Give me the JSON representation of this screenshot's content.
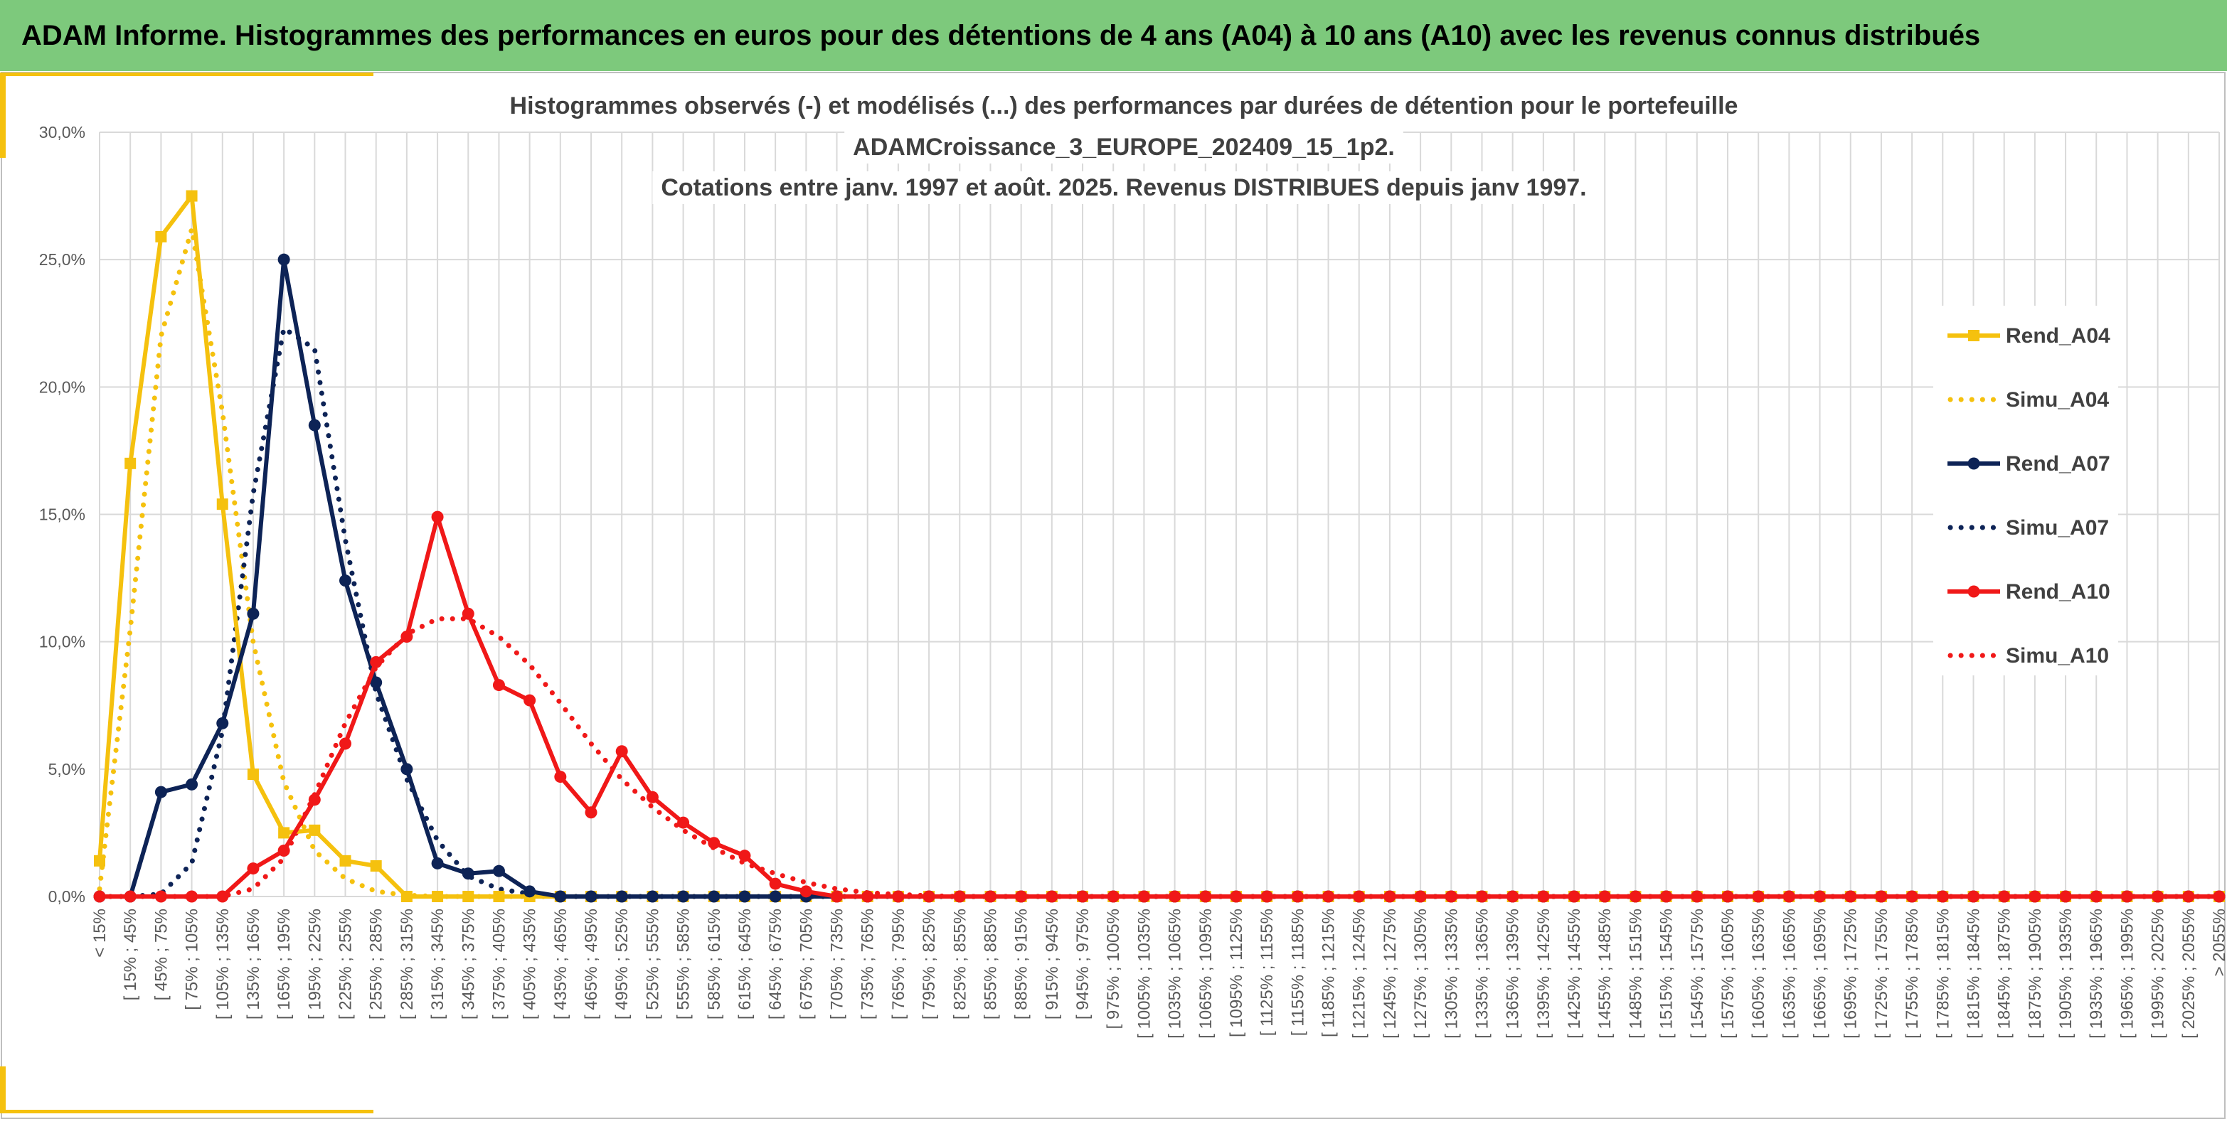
{
  "page": {
    "banner_title": "ADAM Informe. Histogrammes des performances en euros pour des détentions de 4 ans (A04) à 10 ans (A10) avec les revenus connus distribués"
  },
  "colors": {
    "banner": "#7dc97c",
    "A04": "#f5c10e",
    "A07": "#0d2356",
    "A10": "#f01818",
    "grid": "#d9d9d9",
    "accent_bar": "#f5c10e"
  },
  "chart_data": {
    "type": "line",
    "title": [
      "Histogrammes observés (-) et modélisés (...) des performances par durées de détention pour le portefeuille",
      "ADAMCroissance_3_EUROPE_202409_15_1p2.",
      "Cotations entre janv. 1997 et août. 2025. Revenus DISTRIBUES depuis janv 1997."
    ],
    "ylim": [
      0,
      30
    ],
    "y_ticks": [
      "0,0%",
      "5,0%",
      "10,0%",
      "15,0%",
      "20,0%",
      "25,0%",
      "30,0%"
    ],
    "grid": true,
    "legend_position": "right",
    "categories": [
      "< 15%",
      "[ 15% ; 45%",
      "[ 45% ; 75%",
      "[ 75% ; 105%",
      "[ 105% ; 135%",
      "[ 135% ; 165%",
      "[ 165% ; 195%",
      "[ 195% ; 225%",
      "[ 225% ; 255%",
      "[ 255% ; 285%",
      "[ 285% ; 315%",
      "[ 315% ; 345%",
      "[ 345% ; 375%",
      "[ 375% ; 405%",
      "[ 405% ; 435%",
      "[ 435% ; 465%",
      "[ 465% ; 495%",
      "[ 495% ; 525%",
      "[ 525% ; 555%",
      "[ 555% ; 585%",
      "[ 585% ; 615%",
      "[ 615% ; 645%",
      "[ 645% ; 675%",
      "[ 675% ; 705%",
      "[ 705% ; 735%",
      "[ 735% ; 765%",
      "[ 765% ; 795%",
      "[ 795% ; 825%",
      "[ 825% ; 855%",
      "[ 855% ; 885%",
      "[ 885% ; 915%",
      "[ 915% ; 945%",
      "[ 945% ; 975%",
      "[ 975% ; 1005%",
      "[ 1005% ; 1035%",
      "[ 1035% ; 1065%",
      "[ 1065% ; 1095%",
      "[ 1095% ; 1125%",
      "[ 1125% ; 1155%",
      "[ 1155% ; 1185%",
      "[ 1185% ; 1215%",
      "[ 1215% ; 1245%",
      "[ 1245% ; 1275%",
      "[ 1275% ; 1305%",
      "[ 1305% ; 1335%",
      "[ 1335% ; 1365%",
      "[ 1365% ; 1395%",
      "[ 1395% ; 1425%",
      "[ 1425% ; 1455%",
      "[ 1455% ; 1485%",
      "[ 1485% ; 1515%",
      "[ 1515% ; 1545%",
      "[ 1545% ; 1575%",
      "[ 1575% ; 1605%",
      "[ 1605% ; 1635%",
      "[ 1635% ; 1665%",
      "[ 1665% ; 1695%",
      "[ 1695% ; 1725%",
      "[ 1725% ; 1755%",
      "[ 1755% ; 1785%",
      "[ 1785% ; 1815%",
      "[ 1815% ; 1845%",
      "[ 1845% ; 1875%",
      "[ 1875% ; 1905%",
      "[ 1905% ; 1935%",
      "[ 1935% ; 1965%",
      "[ 1965% ; 1995%",
      "[ 1995% ; 2025%",
      "[ 2025% ; 2055%",
      "> 2055%"
    ],
    "series": [
      {
        "name": "Rend_A04",
        "style": "solid",
        "marker": "square",
        "color_key": "A04",
        "values": [
          1.4,
          17.0,
          25.9,
          27.5,
          15.4,
          4.8,
          2.5,
          2.6,
          1.4,
          1.2,
          0,
          0,
          0,
          0,
          0,
          0,
          0,
          0,
          0,
          0,
          0,
          0,
          0,
          0,
          0,
          0,
          0,
          0,
          0,
          0,
          0,
          0,
          0,
          0,
          0,
          0,
          0,
          0,
          0,
          0,
          0,
          0,
          0,
          0,
          0,
          0,
          0,
          0,
          0,
          0,
          0,
          0,
          0,
          0,
          0,
          0,
          0,
          0,
          0,
          0,
          0,
          0,
          0,
          0,
          0,
          0,
          0,
          0,
          0,
          0
        ]
      },
      {
        "name": "Simu_A04",
        "style": "dotted",
        "marker": "none",
        "color_key": "A04",
        "values": [
          0.3,
          10.5,
          22.0,
          26.2,
          19.0,
          10.0,
          4.5,
          1.8,
          0.7,
          0.2,
          0.05,
          0,
          0,
          0,
          0,
          0,
          0,
          0,
          0,
          0,
          0,
          0,
          0,
          0,
          0,
          0,
          0,
          0,
          0,
          0,
          0,
          0,
          0,
          0,
          0,
          0,
          0,
          0,
          0,
          0,
          0,
          0,
          0,
          0,
          0,
          0,
          0,
          0,
          0,
          0,
          0,
          0,
          0,
          0,
          0,
          0,
          0,
          0,
          0,
          0,
          0,
          0,
          0,
          0,
          0,
          0,
          0,
          0,
          0,
          0
        ]
      },
      {
        "name": "Rend_A07",
        "style": "solid",
        "marker": "circle",
        "color_key": "A07",
        "values": [
          0,
          0,
          4.1,
          4.4,
          6.8,
          11.1,
          25.0,
          18.5,
          12.4,
          8.4,
          5.0,
          1.3,
          0.9,
          1.0,
          0.2,
          0,
          0,
          0,
          0,
          0,
          0,
          0,
          0,
          0,
          0,
          0,
          0,
          0,
          0,
          0,
          0,
          0,
          0,
          0,
          0,
          0,
          0,
          0,
          0,
          0,
          0,
          0,
          0,
          0,
          0,
          0,
          0,
          0,
          0,
          0,
          0,
          0,
          0,
          0,
          0,
          0,
          0,
          0,
          0,
          0,
          0,
          0,
          0,
          0,
          0,
          0,
          0,
          0,
          0,
          0
        ]
      },
      {
        "name": "Simu_A07",
        "style": "dotted",
        "marker": "none",
        "color_key": "A07",
        "values": [
          0,
          0,
          0.1,
          1.3,
          6.5,
          15.8,
          22.3,
          21.5,
          14.0,
          8.0,
          4.6,
          2.2,
          0.8,
          0.3,
          0.1,
          0,
          0,
          0,
          0,
          0,
          0,
          0,
          0,
          0,
          0,
          0,
          0,
          0,
          0,
          0,
          0,
          0,
          0,
          0,
          0,
          0,
          0,
          0,
          0,
          0,
          0,
          0,
          0,
          0,
          0,
          0,
          0,
          0,
          0,
          0,
          0,
          0,
          0,
          0,
          0,
          0,
          0,
          0,
          0,
          0,
          0,
          0,
          0,
          0,
          0,
          0,
          0,
          0,
          0,
          0
        ]
      },
      {
        "name": "Rend_A10",
        "style": "solid",
        "marker": "circle",
        "color_key": "A10",
        "values": [
          0,
          0,
          0,
          0,
          0,
          1.1,
          1.8,
          3.8,
          6.0,
          9.2,
          10.2,
          14.9,
          11.1,
          8.3,
          7.7,
          4.7,
          3.3,
          5.7,
          3.9,
          2.9,
          2.1,
          1.6,
          0.5,
          0.2,
          0,
          0,
          0,
          0,
          0,
          0,
          0,
          0,
          0,
          0,
          0,
          0,
          0,
          0,
          0,
          0,
          0,
          0,
          0,
          0,
          0,
          0,
          0,
          0,
          0,
          0,
          0,
          0,
          0,
          0,
          0,
          0,
          0,
          0,
          0,
          0,
          0,
          0,
          0,
          0,
          0,
          0,
          0,
          0,
          0,
          0
        ]
      },
      {
        "name": "Simu_A10",
        "style": "dotted",
        "marker": "none",
        "color_key": "A10",
        "values": [
          0,
          0,
          0,
          0,
          0,
          0.3,
          1.5,
          4.0,
          6.8,
          9.0,
          10.3,
          10.9,
          10.9,
          10.2,
          9.1,
          7.6,
          6.0,
          4.6,
          3.5,
          2.6,
          1.9,
          1.3,
          0.9,
          0.55,
          0.3,
          0.15,
          0.08,
          0.03,
          0,
          0,
          0,
          0,
          0,
          0,
          0,
          0,
          0,
          0,
          0,
          0,
          0,
          0,
          0,
          0,
          0,
          0,
          0,
          0,
          0,
          0,
          0,
          0,
          0,
          0,
          0,
          0,
          0,
          0,
          0,
          0,
          0,
          0,
          0,
          0,
          0,
          0,
          0,
          0,
          0,
          0
        ]
      }
    ]
  }
}
